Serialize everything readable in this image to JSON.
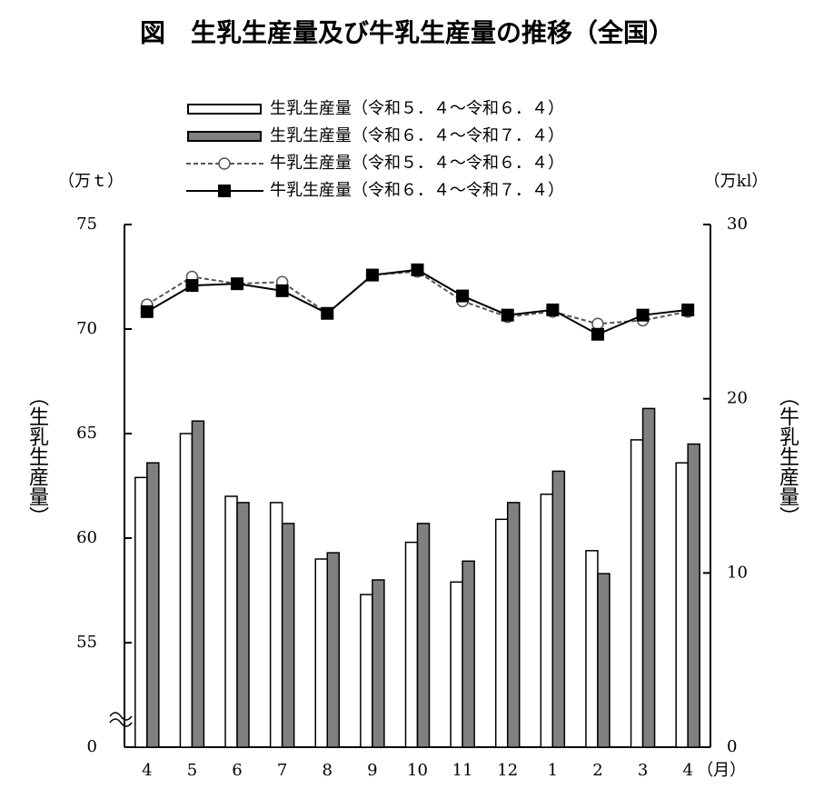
{
  "chart_data": {
    "type": "bar_line",
    "title": "図　生乳生産量及び牛乳生産量の推移（全国）",
    "y_axis_label": "（生乳生産量）",
    "y2_axis_label": "（牛乳生産量）",
    "y_unit": "（万ｔ）",
    "y2_unit": "（万kl）",
    "x_unit": "（月）",
    "categories": [
      "4",
      "5",
      "6",
      "7",
      "8",
      "9",
      "10",
      "11",
      "12",
      "1",
      "2",
      "3",
      "4"
    ],
    "series": [
      {
        "name": "生乳生産量（令和５．４～令和６．４）",
        "kind": "bar",
        "color": "#ffffff",
        "values": [
          62.9,
          65.0,
          62.0,
          61.7,
          59.0,
          57.3,
          59.8,
          57.9,
          60.9,
          62.1,
          59.4,
          64.7,
          63.6
        ]
      },
      {
        "name": "生乳生産量（令和６．４～令和７．４）",
        "kind": "bar",
        "color": "#808080",
        "values": [
          63.6,
          65.6,
          61.7,
          60.7,
          59.3,
          58.0,
          60.7,
          58.9,
          61.7,
          63.2,
          58.3,
          66.2,
          64.5
        ]
      },
      {
        "name": "牛乳生産量（令和５．４～令和６．４）",
        "kind": "line",
        "axis": "y2",
        "color": "#555555",
        "dash": true,
        "marker": "circle",
        "values": [
          25.4,
          27.0,
          26.6,
          26.7,
          24.9,
          27.1,
          27.3,
          25.6,
          24.7,
          25.0,
          24.3,
          24.5,
          25.0
        ]
      },
      {
        "name": "牛乳生産量（令和６．４～令和７．４）",
        "kind": "line",
        "axis": "y2",
        "color": "#000000",
        "dash": false,
        "marker": "square",
        "values": [
          25.0,
          26.5,
          26.6,
          26.2,
          24.9,
          27.1,
          27.4,
          25.9,
          24.8,
          25.1,
          23.7,
          24.8,
          25.1
        ]
      }
    ],
    "ylim": [
      50,
      75
    ],
    "yticks": [
      {
        "value": 50,
        "label": "0"
      },
      55,
      60,
      65,
      70,
      75
    ],
    "y_axis_break": true,
    "y2lim": [
      0,
      30
    ],
    "y2ticks": [
      0,
      10,
      20,
      30
    ]
  }
}
